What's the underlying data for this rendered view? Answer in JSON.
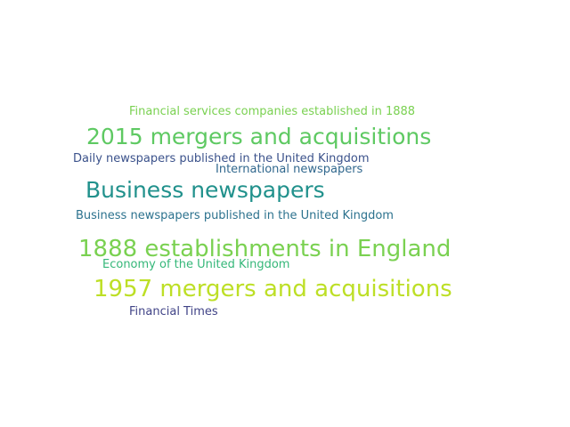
{
  "word_cloud": {
    "words": [
      {
        "text": "Financial services companies established in 1888",
        "color": "#7ad151"
      },
      {
        "text": "2015 mergers and acquisitions",
        "color": "#5ec962"
      },
      {
        "text": "Daily newspapers published in the United Kingdom",
        "color": "#3b528b"
      },
      {
        "text": "International newspapers",
        "color": "#31688e"
      },
      {
        "text": "Business newspapers",
        "color": "#21918c"
      },
      {
        "text": "Business newspapers published in the United Kingdom",
        "color": "#2c728e"
      },
      {
        "text": "1888 establishments in England",
        "color": "#7ad151"
      },
      {
        "text": "Economy of the United Kingdom",
        "color": "#35b779"
      },
      {
        "text": "1957 mergers and acquisitions",
        "color": "#bddf26"
      },
      {
        "text": "Financial Times",
        "color": "#414487"
      }
    ]
  }
}
